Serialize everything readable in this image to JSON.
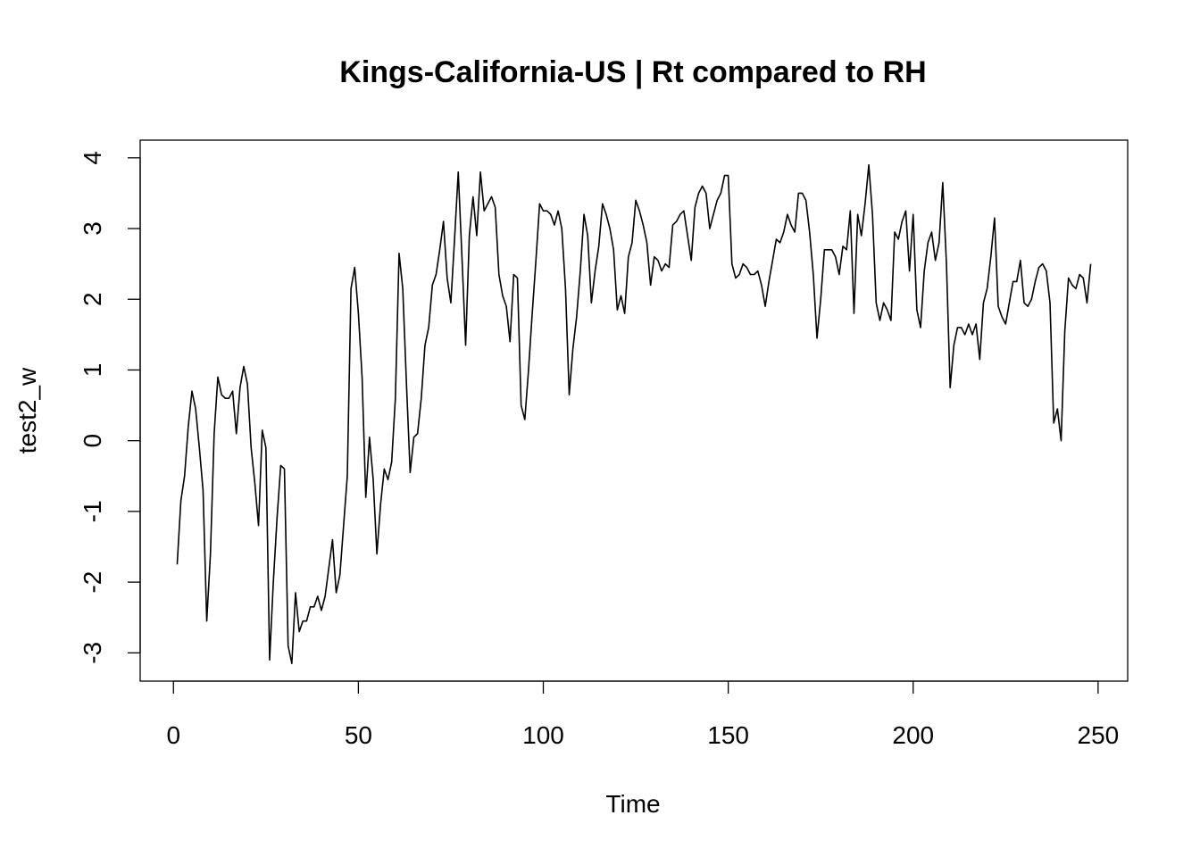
{
  "chart_data": {
    "type": "line",
    "title": "Kings-California-US | Rt compared to RH",
    "xlabel": "Time",
    "ylabel": "test2_w",
    "xlim": [
      -9,
      258
    ],
    "ylim": [
      -3.4,
      4.25
    ],
    "x_ticks": [
      0,
      50,
      100,
      150,
      200,
      250
    ],
    "y_ticks": [
      -3,
      -2,
      -1,
      0,
      1,
      2,
      3,
      4
    ],
    "grid": false,
    "legend": "none",
    "line_color": "#000000",
    "series": [
      {
        "x_start": 1,
        "x_step": 1,
        "values": [
          -1.75,
          -0.85,
          -0.5,
          0.2,
          0.7,
          0.45,
          -0.1,
          -0.7,
          -2.55,
          -1.6,
          0.1,
          0.9,
          0.65,
          0.6,
          0.6,
          0.7,
          0.1,
          0.75,
          1.05,
          0.8,
          -0.1,
          -0.6,
          -1.2,
          0.15,
          -0.1,
          -3.1,
          -2.0,
          -1.1,
          -0.35,
          -0.4,
          -2.9,
          -3.15,
          -2.15,
          -2.7,
          -2.55,
          -2.55,
          -2.35,
          -2.35,
          -2.2,
          -2.4,
          -2.2,
          -1.8,
          -1.4,
          -2.15,
          -1.9,
          -1.2,
          -0.5,
          2.15,
          2.45,
          1.8,
          0.9,
          -0.8,
          0.05,
          -0.55,
          -1.6,
          -0.9,
          -0.4,
          -0.55,
          -0.3,
          0.6,
          2.65,
          2.15,
          0.8,
          -0.45,
          0.05,
          0.1,
          0.6,
          1.35,
          1.6,
          2.2,
          2.35,
          2.7,
          3.1,
          2.3,
          1.95,
          2.85,
          3.8,
          2.6,
          1.35,
          2.9,
          3.45,
          2.9,
          3.8,
          3.25,
          3.35,
          3.45,
          3.3,
          2.35,
          2.05,
          1.9,
          1.4,
          2.35,
          2.3,
          0.5,
          0.3,
          1.0,
          1.8,
          2.55,
          3.35,
          3.25,
          3.25,
          3.2,
          3.05,
          3.25,
          3.0,
          2.15,
          0.65,
          1.3,
          1.75,
          2.4,
          3.2,
          2.9,
          1.95,
          2.4,
          2.75,
          3.35,
          3.2,
          3.0,
          2.7,
          1.85,
          2.05,
          1.8,
          2.6,
          2.8,
          3.4,
          3.25,
          3.05,
          2.8,
          2.2,
          2.6,
          2.55,
          2.4,
          2.5,
          2.45,
          3.05,
          3.1,
          3.2,
          3.25,
          2.9,
          2.55,
          3.3,
          3.5,
          3.6,
          3.5,
          3.0,
          3.2,
          3.4,
          3.5,
          3.75,
          3.75,
          2.5,
          2.3,
          2.35,
          2.5,
          2.45,
          2.35,
          2.35,
          2.4,
          2.2,
          1.9,
          2.25,
          2.55,
          2.85,
          2.8,
          2.95,
          3.2,
          3.05,
          2.95,
          3.5,
          3.5,
          3.4,
          2.95,
          2.35,
          1.45,
          2.0,
          2.7,
          2.7,
          2.7,
          2.6,
          2.35,
          2.75,
          2.7,
          3.25,
          1.8,
          3.2,
          2.9,
          3.35,
          3.9,
          3.2,
          1.95,
          1.7,
          1.95,
          1.85,
          1.7,
          2.95,
          2.85,
          3.1,
          3.25,
          2.4,
          3.2,
          1.85,
          1.6,
          2.4,
          2.8,
          2.95,
          2.55,
          2.8,
          3.65,
          2.5,
          0.75,
          1.35,
          1.6,
          1.6,
          1.5,
          1.65,
          1.5,
          1.65,
          1.15,
          1.95,
          2.15,
          2.6,
          3.15,
          1.9,
          1.75,
          1.65,
          1.95,
          2.25,
          2.25,
          2.55,
          1.95,
          1.9,
          2.0,
          2.25,
          2.45,
          2.5,
          2.4,
          1.95,
          0.25,
          0.45,
          0.0,
          1.55,
          2.3,
          2.2,
          2.15,
          2.35,
          2.3,
          1.95,
          2.5
        ]
      }
    ]
  }
}
